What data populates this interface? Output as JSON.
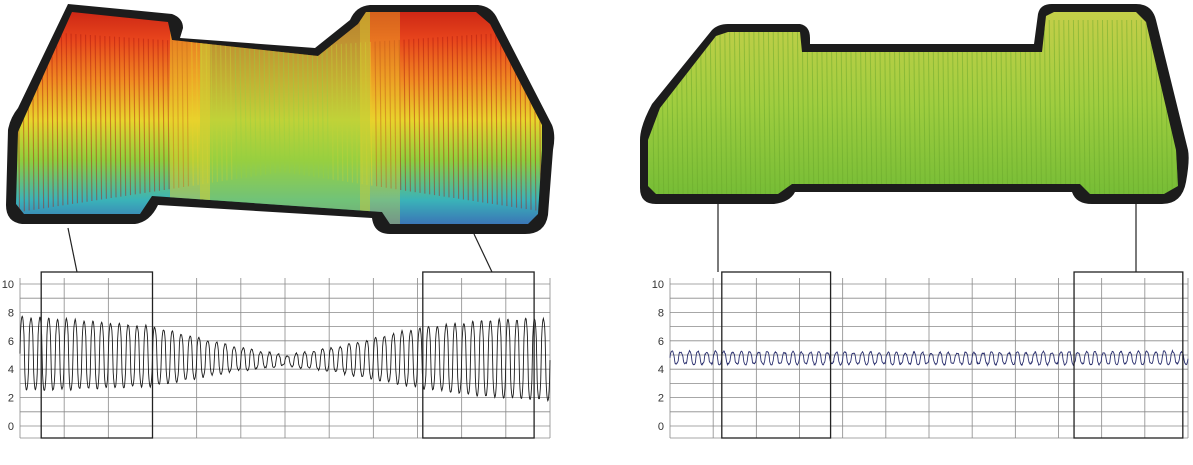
{
  "colors": {
    "grid": "#8a8a8a",
    "frame": "#222222",
    "left_trace": "#1a1a1a",
    "right_trace": "#2a2f6e",
    "surface_border": "#1c1c1c",
    "left_surface_stops": [
      "#c21b12",
      "#e8451c",
      "#f08a22",
      "#e9d52c",
      "#8fcf3c",
      "#3ab3b8",
      "#3b4db5"
    ],
    "right_surface_stops": [
      "#c9cf4a",
      "#9fcd3f",
      "#6fba34"
    ]
  },
  "chart_data": [
    {
      "type": "line",
      "panel": "left",
      "title": "",
      "xlabel": "",
      "ylabel": "",
      "ylim": [
        0,
        10
      ],
      "yticks": [
        "0",
        "2",
        "4",
        "6",
        "8",
        "10"
      ],
      "grid": true,
      "legend": "none",
      "series": [
        {
          "cycles": 60,
          "center_start": 5.0,
          "amplitude_profile": [
            [
              0,
              2.6
            ],
            [
              0.08,
              2.5
            ],
            [
              0.25,
              2.1
            ],
            [
              0.4,
              0.9
            ],
            [
              0.5,
              0.35
            ],
            [
              0.6,
              0.9
            ],
            [
              0.75,
              2.1
            ],
            [
              0.88,
              2.7
            ],
            [
              1.0,
              2.9
            ]
          ],
          "center_profile": [
            [
              0,
              5.1
            ],
            [
              0.25,
              4.9
            ],
            [
              0.5,
              4.6
            ],
            [
              0.75,
              4.8
            ],
            [
              1.0,
              4.7
            ]
          ]
        }
      ],
      "highlight_boxes": [
        [
          0.04,
          0.25
        ],
        [
          0.76,
          0.97
        ]
      ]
    },
    {
      "type": "line",
      "panel": "right",
      "title": "",
      "xlabel": "",
      "ylabel": "",
      "ylim": [
        0,
        10
      ],
      "yticks": [
        "0",
        "2",
        "4",
        "6",
        "8",
        "10"
      ],
      "grid": true,
      "legend": "none",
      "series": [
        {
          "cycles": 60,
          "amplitude_profile": [
            [
              0,
              0.45
            ],
            [
              0.5,
              0.4
            ],
            [
              1.0,
              0.45
            ]
          ],
          "center_profile": [
            [
              0,
              4.8
            ],
            [
              0.5,
              4.75
            ],
            [
              1.0,
              4.8
            ]
          ]
        }
      ],
      "highlight_boxes": [
        [
          0.1,
          0.31
        ],
        [
          0.78,
          0.99
        ]
      ]
    }
  ]
}
